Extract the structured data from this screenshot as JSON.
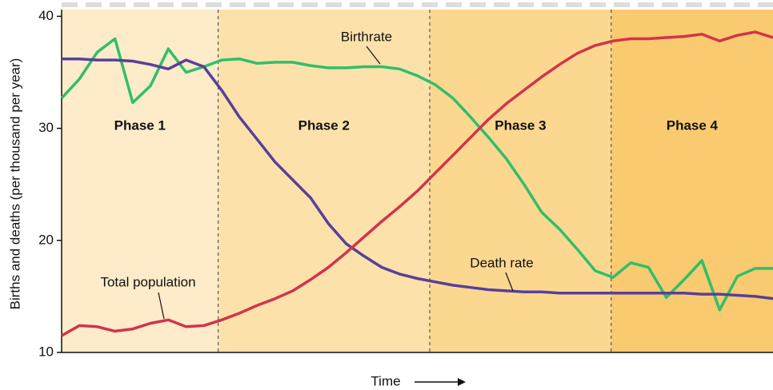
{
  "chart_data": {
    "type": "line",
    "y_label": "Births and deaths (per thousand per year)",
    "x_label": "Time",
    "categories": [
      null,
      null,
      null,
      null,
      null,
      null,
      null,
      null,
      null,
      null,
      null,
      null,
      null,
      null,
      null,
      null,
      null,
      null,
      null,
      null,
      null,
      null,
      null,
      null,
      null,
      null,
      null,
      null,
      null,
      null,
      null,
      null,
      null,
      null,
      null,
      null,
      null,
      null,
      null,
      null,
      null
    ],
    "ylim": [
      10,
      40.6
    ],
    "yticks": [
      10,
      20,
      30,
      40
    ],
    "phases": [
      {
        "label": "Phase 1",
        "from": 0,
        "to": 8.8,
        "color": "#fdebc9"
      },
      {
        "label": "Phase 2",
        "from": 8.8,
        "to": 20.7,
        "color": "#fde1ab"
      },
      {
        "label": "Phase 3",
        "from": 20.7,
        "to": 30.9,
        "color": "#fcd790"
      },
      {
        "label": "Phase 4",
        "from": 30.9,
        "to": 40,
        "color": "#f9ca70"
      }
    ],
    "series": [
      {
        "name": "Birthrate",
        "color": "#2fbf6a",
        "values": [
          32.7,
          34.4,
          36.8,
          38.0,
          32.3,
          33.8,
          37.1,
          35.0,
          35.5,
          36.1,
          36.2,
          35.8,
          35.9,
          35.9,
          35.6,
          35.4,
          35.4,
          35.5,
          35.5,
          35.3,
          34.7,
          33.9,
          32.7,
          31.0,
          29.2,
          27.3,
          25.0,
          22.5,
          21.0,
          19.2,
          17.3,
          16.7,
          18.0,
          17.6,
          14.9,
          16.5,
          18.2,
          13.8,
          16.8,
          17.5,
          17.5
        ]
      },
      {
        "name": "Death rate",
        "color": "#57409a",
        "values": [
          36.2,
          36.2,
          36.1,
          36.1,
          36.0,
          35.7,
          35.3,
          36.1,
          35.5,
          33.4,
          31.0,
          29.0,
          27.0,
          25.4,
          23.8,
          21.5,
          19.7,
          18.6,
          17.6,
          17.0,
          16.6,
          16.3,
          16.0,
          15.8,
          15.6,
          15.5,
          15.4,
          15.4,
          15.3,
          15.3,
          15.3,
          15.3,
          15.3,
          15.3,
          15.3,
          15.3,
          15.2,
          15.2,
          15.1,
          15.0,
          14.8
        ]
      },
      {
        "name": "Total population",
        "color": "#d1344a",
        "values": [
          11.5,
          12.4,
          12.3,
          11.9,
          12.1,
          12.6,
          12.9,
          12.3,
          12.4,
          12.9,
          13.5,
          14.2,
          14.8,
          15.5,
          16.5,
          17.6,
          18.9,
          20.3,
          21.7,
          23.0,
          24.4,
          26.0,
          27.6,
          29.2,
          30.8,
          32.2,
          33.4,
          34.6,
          35.7,
          36.7,
          37.4,
          37.8,
          38.0,
          38.0,
          38.1,
          38.2,
          38.4,
          37.8,
          38.3,
          38.6,
          38.1
        ]
      }
    ]
  }
}
